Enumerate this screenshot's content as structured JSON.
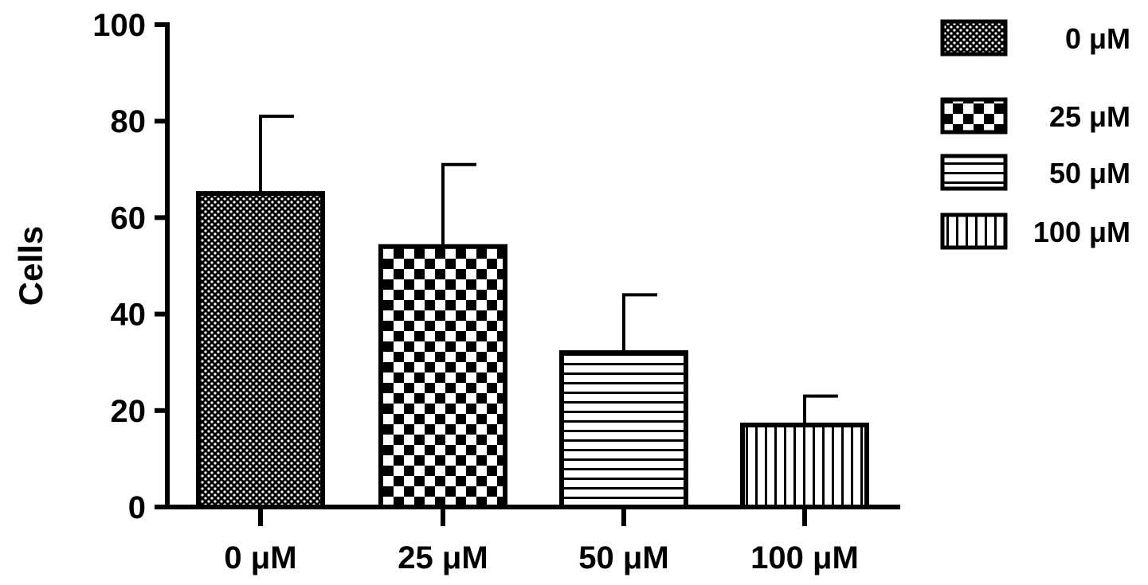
{
  "chart_data": {
    "type": "bar",
    "title": "",
    "xlabel": "",
    "ylabel": "Cells",
    "ylim": [
      0,
      100
    ],
    "yticks": [
      "0",
      "20",
      "40",
      "60",
      "80",
      "100"
    ],
    "categories": [
      "0 μM",
      "25 μM",
      "50 μM",
      "100 μM"
    ],
    "values": [
      65,
      54,
      32,
      17
    ],
    "errors_upper": [
      16,
      17,
      12,
      6
    ],
    "patterns": [
      "fine-dots",
      "checkerboard",
      "horizontal-lines",
      "vertical-lines"
    ],
    "legend": {
      "placement": "top-right",
      "entries": [
        "0 μM",
        "25 μM",
        "50 μM",
        "100 μM"
      ]
    },
    "grid": false,
    "colors": {
      "stroke": "#000000",
      "fill": "#ffffff"
    }
  }
}
